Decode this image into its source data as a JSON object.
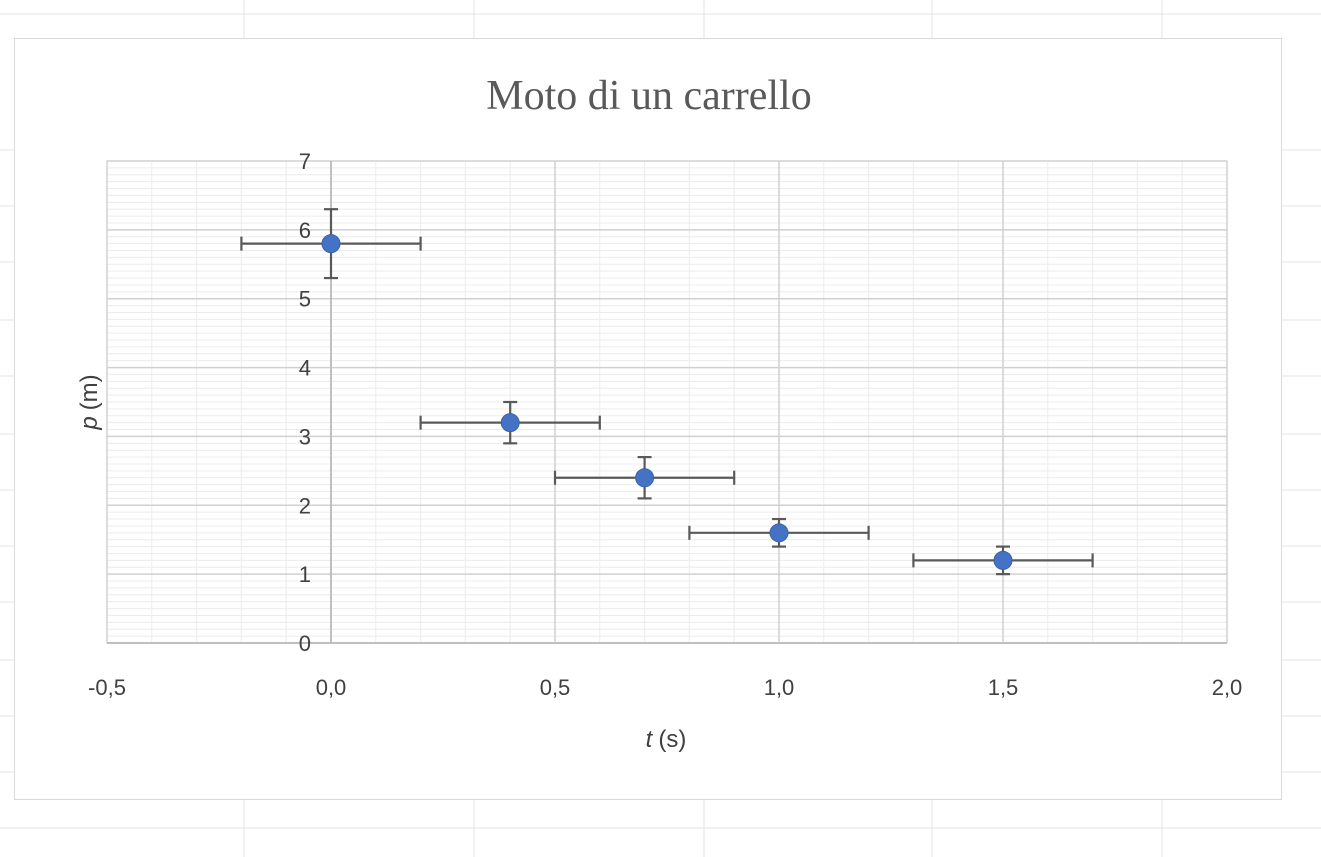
{
  "chart_data": {
    "type": "scatter",
    "title": "Moto di un carrello",
    "xlabel_var": "t",
    "xlabel_unit": "(s)",
    "ylabel_var": "p",
    "ylabel_unit": "(m)",
    "xlim": [
      -0.5,
      2.0
    ],
    "ylim": [
      0,
      7
    ],
    "x_ticks": [
      -0.5,
      0.0,
      0.5,
      1.0,
      1.5,
      2.0
    ],
    "x_tick_labels": [
      "-0,5",
      "0,0",
      "0,5",
      "1,0",
      "1,5",
      "2,0"
    ],
    "y_ticks": [
      0,
      1,
      2,
      3,
      4,
      5,
      6,
      7
    ],
    "y_tick_labels": [
      "0",
      "1",
      "2",
      "3",
      "4",
      "5",
      "6",
      "7"
    ],
    "grid": "major and minor",
    "legend": "none",
    "marker_color": "#4472c4",
    "errorbar_color": "#595959",
    "points": [
      {
        "x": 0.0,
        "y": 5.8,
        "xerr": 0.2,
        "yerr": 0.5
      },
      {
        "x": 0.4,
        "y": 3.2,
        "xerr": 0.2,
        "yerr": 0.3
      },
      {
        "x": 0.7,
        "y": 2.4,
        "xerr": 0.2,
        "yerr": 0.3
      },
      {
        "x": 1.0,
        "y": 1.6,
        "xerr": 0.2,
        "yerr": 0.2
      },
      {
        "x": 1.5,
        "y": 1.2,
        "xerr": 0.2,
        "yerr": 0.2
      }
    ]
  }
}
